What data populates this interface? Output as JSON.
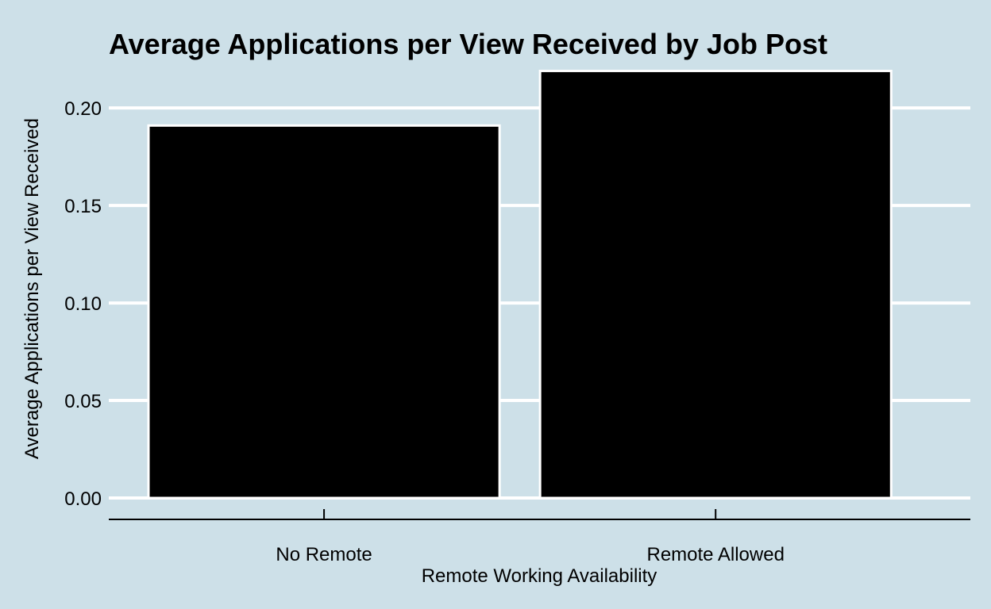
{
  "chart_data": {
    "type": "bar",
    "title": "Average Applications per View Received by Job Post",
    "xlabel": "Remote Working Availability",
    "ylabel": "Average Applications per View Received",
    "categories": [
      "No Remote",
      "Remote Allowed"
    ],
    "values": [
      0.191,
      0.219
    ],
    "ylim": [
      0,
      0.22
    ],
    "yticks": [
      "0.00",
      "0.05",
      "0.10",
      "0.15",
      "0.20"
    ],
    "grid": "horizontal",
    "legend": "none"
  },
  "colors": {
    "background": "#cde0e8",
    "bar_fill": "#000000",
    "bar_outline": "#ffffff",
    "gridline": "#ffffff",
    "axis_line": "#000000"
  }
}
